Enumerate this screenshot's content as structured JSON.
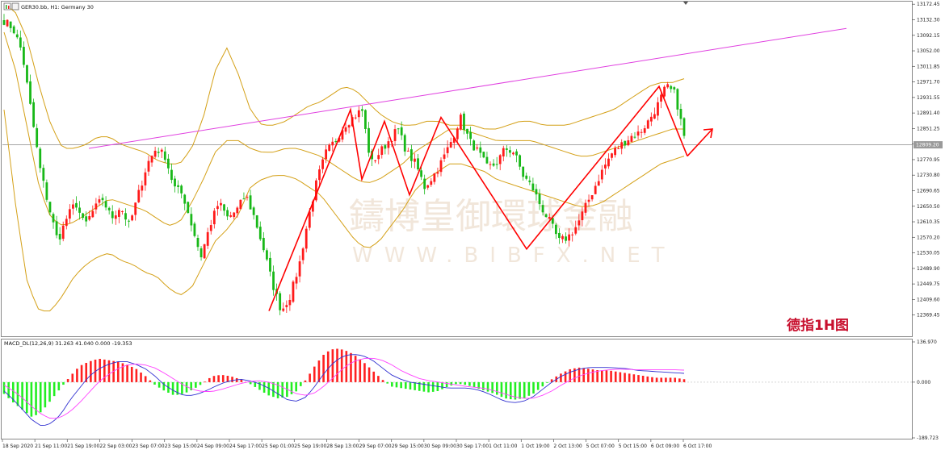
{
  "window": {
    "symbol_title": "GER30.bb, H1:  Germany 30",
    "indicator_title": "MACD_DL(12,26,9) 31.263 41.040 0.000 -19.353"
  },
  "annotation": {
    "tag": "德指1H图"
  },
  "watermark": {
    "line1": "鑄博皇御環球金融",
    "line2": "WWW.BIBFX.NET"
  },
  "colors": {
    "bull": "#ff1a1a",
    "bear": "#18b818",
    "band": "#d4a017",
    "trendline": "#e040e0",
    "pattern": "#ff0000",
    "macd_pos": "#ff2020",
    "macd_neg": "#22ee22",
    "macd_line": "#3030d0",
    "signal_line": "#ff40ff"
  },
  "chart_data": [
    {
      "type": "line",
      "chart": "candlestick",
      "symbol": "GER30.bb",
      "timeframe": "H1",
      "y_ticks": [
        "13172.45",
        "13132.30",
        "13092.15",
        "13052.00",
        "13011.85",
        "12971.70",
        "12931.55",
        "12891.40",
        "12851.25",
        "12811.10",
        "12770.95",
        "12730.80",
        "12690.65",
        "12650.50",
        "12610.35",
        "12570.20",
        "12530.05",
        "12489.90",
        "12449.75",
        "12409.60",
        "12369.45"
      ],
      "ylim": [
        12350,
        13175
      ],
      "current_price_label": "12809.20",
      "current_price": 12809.2,
      "x_ticks": [
        "18 Sep 2020",
        "21 Sep 11:00",
        "21 Sep 19:00",
        "22 Sep 03:00",
        "23 Sep 07:00",
        "23 Sep 15:00",
        "24 Sep 09:00",
        "24 Sep 17:00",
        "25 Sep 01:00",
        "25 Sep 19:00",
        "28 Sep 13:00",
        "29 Sep 07:00",
        "29 Sep 15:00",
        "30 Sep 09:00",
        "30 Sep 17:00",
        "1 Oct 11:00",
        "1 Oct 19:00",
        "2 Oct 13:00",
        "5 Oct 07:00",
        "5 Oct 15:00",
        "6 Oct 09:00",
        "6 Oct 17:00"
      ],
      "close_path": [
        13130,
        13110,
        13050,
        12900,
        12750,
        12650,
        12560,
        12620,
        12660,
        12600,
        12640,
        12670,
        12620,
        12650,
        12600,
        12680,
        12760,
        12800,
        12780,
        12700,
        12680,
        12600,
        12520,
        12600,
        12660,
        12620,
        12640,
        12680,
        12620,
        12540,
        12450,
        12380,
        12420,
        12500,
        12620,
        12720,
        12790,
        12820,
        12860,
        12880,
        12900,
        12760,
        12790,
        12820,
        12850,
        12790,
        12760,
        12700,
        12730,
        12770,
        12820,
        12880,
        12820,
        12790,
        12750,
        12760,
        12800,
        12790,
        12730,
        12700,
        12650,
        12610,
        12560,
        12570,
        12600,
        12650,
        12700,
        12750,
        12790,
        12810,
        12830,
        12840,
        12870,
        12910,
        12960,
        12940,
        12830
      ],
      "bollinger": {
        "upper": [
          13175,
          13150,
          13080,
          12960,
          12860,
          12800,
          12800,
          12810,
          12830,
          12830,
          12810,
          12800,
          12790,
          12770,
          12760,
          12760,
          12800,
          12880,
          13000,
          13060,
          12990,
          12900,
          12860,
          12860,
          12870,
          12890,
          12910,
          12920,
          12940,
          12960,
          12950,
          12920,
          12890,
          12870,
          12860,
          12860,
          12870,
          12870,
          12860,
          12860,
          12860,
          12850,
          12850,
          12860,
          12870,
          12870,
          12860,
          12860,
          12860,
          12870,
          12880,
          12890,
          12900,
          12920,
          12940,
          12960,
          12970,
          12970,
          12980
        ],
        "middle": [
          13100,
          13000,
          12850,
          12700,
          12620,
          12600,
          12610,
          12630,
          12650,
          12670,
          12660,
          12650,
          12640,
          12620,
          12600,
          12610,
          12660,
          12720,
          12790,
          12820,
          12820,
          12800,
          12790,
          12790,
          12800,
          12800,
          12790,
          12780,
          12760,
          12740,
          12720,
          12710,
          12720,
          12740,
          12760,
          12790,
          12810,
          12830,
          12850,
          12850,
          12840,
          12830,
          12820,
          12820,
          12820,
          12820,
          12810,
          12800,
          12790,
          12780,
          12780,
          12790,
          12800,
          12810,
          12820,
          12830,
          12840,
          12850,
          12850
        ],
        "lower": [
          12900,
          12650,
          12450,
          12380,
          12380,
          12420,
          12470,
          12500,
          12520,
          12530,
          12510,
          12500,
          12480,
          12470,
          12440,
          12420,
          12440,
          12500,
          12560,
          12590,
          12630,
          12700,
          12720,
          12730,
          12730,
          12720,
          12700,
          12680,
          12640,
          12600,
          12560,
          12540,
          12560,
          12600,
          12640,
          12690,
          12720,
          12740,
          12760,
          12760,
          12750,
          12740,
          12720,
          12710,
          12700,
          12690,
          12680,
          12670,
          12660,
          12650,
          12650,
          12660,
          12680,
          12700,
          12720,
          12740,
          12760,
          12770,
          12780
        ]
      },
      "trendline": {
        "from": 12800,
        "to": 13110
      },
      "pattern_path": [
        12380,
        12900,
        12720,
        12870,
        12680,
        12880,
        12540,
        12960,
        12780,
        12850
      ]
    },
    {
      "type": "bar",
      "title": "MACD_DL(12,26,9) 31.263 41.040 0.000 -19.353",
      "y_ticks": [
        "136.970",
        "0.000",
        "-189.723"
      ],
      "ylim": [
        -189.723,
        136.97
      ],
      "histogram": [
        -40,
        -70,
        -95,
        -120,
        -100,
        -60,
        -20,
        20,
        55,
        70,
        80,
        75,
        70,
        60,
        45,
        20,
        -10,
        -30,
        -45,
        -40,
        -25,
        -5,
        20,
        25,
        20,
        10,
        -5,
        -25,
        -45,
        -55,
        -50,
        -30,
        10,
        60,
        100,
        115,
        110,
        95,
        70,
        40,
        10,
        -15,
        -20,
        -25,
        -30,
        -35,
        -30,
        -15,
        -5,
        -10,
        -20,
        -30,
        -40,
        -55,
        -60,
        -55,
        -40,
        -15,
        10,
        30,
        45,
        50,
        45,
        40,
        40,
        35,
        30,
        25,
        20,
        15,
        15,
        15,
        10
      ],
      "macd_line": [
        -30,
        -60,
        -95,
        -130,
        -150,
        -140,
        -110,
        -60,
        -20,
        20,
        45,
        60,
        70,
        70,
        60,
        45,
        20,
        -10,
        -30,
        -45,
        -45,
        -35,
        -20,
        -5,
        5,
        10,
        5,
        -5,
        -20,
        -40,
        -60,
        -65,
        -50,
        -10,
        35,
        70,
        90,
        95,
        90,
        75,
        50,
        25,
        10,
        0,
        -5,
        -10,
        -15,
        -20,
        -20,
        -20,
        -25,
        -35,
        -50,
        -65,
        -70,
        -65,
        -50,
        -25,
        0,
        20,
        35,
        45,
        50,
        50,
        50,
        48,
        46,
        40,
        38,
        36,
        34,
        32,
        30
      ],
      "signal_line": [
        -10,
        -30,
        -55,
        -85,
        -110,
        -125,
        -120,
        -100,
        -70,
        -35,
        0,
        25,
        45,
        58,
        62,
        58,
        48,
        30,
        10,
        -10,
        -25,
        -32,
        -32,
        -25,
        -15,
        -5,
        2,
        5,
        0,
        -10,
        -25,
        -40,
        -45,
        -35,
        -10,
        20,
        50,
        70,
        80,
        82,
        75,
        60,
        40,
        25,
        12,
        5,
        0,
        -5,
        -10,
        -15,
        -18,
        -22,
        -30,
        -40,
        -50,
        -55,
        -55,
        -45,
        -30,
        -10,
        8,
        22,
        32,
        38,
        42,
        44,
        44,
        42,
        42,
        42,
        42,
        42,
        41
      ]
    }
  ]
}
